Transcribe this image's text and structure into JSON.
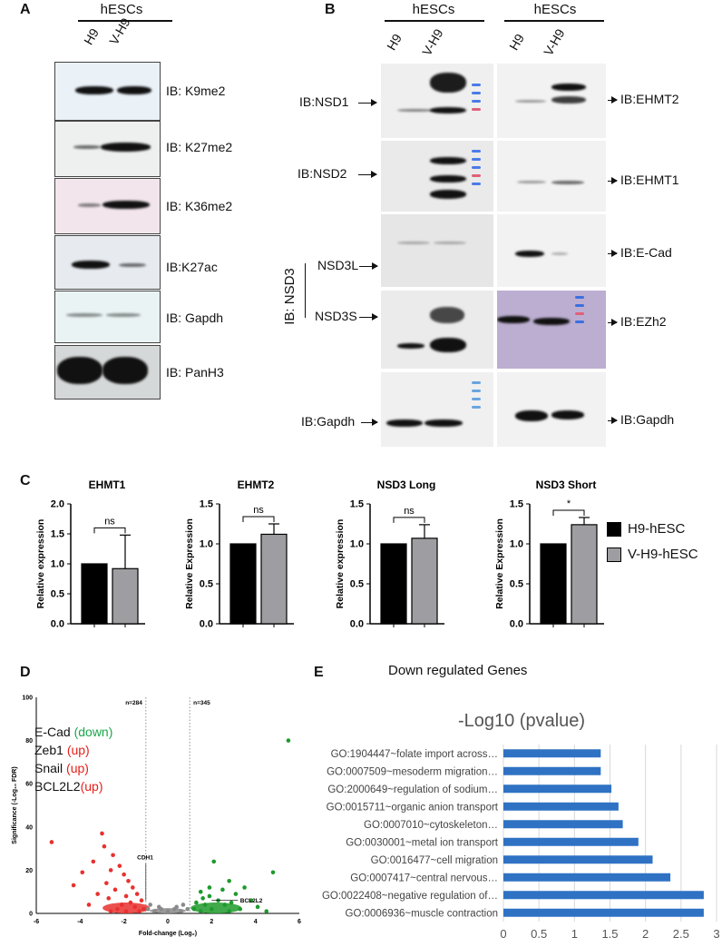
{
  "panelA": {
    "letter": "A",
    "header": "hESCs",
    "lanes": [
      "H9",
      "V-H9"
    ],
    "blots": [
      "IB: K9me2",
      "IB: K27me2",
      "IB: K36me2",
      "IB:K27ac",
      "IB: Gapdh",
      "IB: PanH3"
    ]
  },
  "panelB": {
    "letter": "B",
    "header_left": "hESCs",
    "header_right": "hESCs",
    "lanes": [
      "H9",
      "V-H9"
    ],
    "left_labels": [
      "IB:NSD1",
      "IB:NSD2",
      "NSD3L",
      "NSD3S",
      "IB:Gapdh"
    ],
    "nsd3_group": "IB: NSD3",
    "right_labels": [
      "IB:EHMT2",
      "IB:EHMT1",
      "IB:E-Cad",
      "IB:EZh2",
      "IB:Gapdh"
    ]
  },
  "panelC": {
    "letter": "C",
    "legend": [
      "H9-hESC",
      "V-H9-hESC"
    ],
    "colors": {
      "h9": "#000000",
      "vh9": "#9e9ea2"
    }
  },
  "panelD": {
    "letter": "D",
    "n_left": "n=284",
    "n_right": "n=345",
    "cdh1": "CDH1",
    "bcl2l2": "BCL2L2",
    "genes": [
      {
        "name": "E-Cad",
        "dir": "(down)"
      },
      {
        "name": "Zeb1 ",
        "dir": "(up)"
      },
      {
        "name": "Snail ",
        "dir": "(up)"
      },
      {
        "name": "BCL2L2",
        "dir": "(up)"
      }
    ],
    "colors": {
      "down": "#e8312f",
      "up": "#1e9a2c",
      "ns": "#8a8a8a",
      "text_down": "#1aa64a",
      "text_up": "#e8201a"
    }
  },
  "panelE": {
    "letter": "E",
    "title": "Down regulated Genes",
    "bar_color": "#2f72c4"
  },
  "chart_data": [
    {
      "type": "bar",
      "title": "EHMT1",
      "ylabel": "Relative expression",
      "categories": [
        "H9-hESC",
        "V-H9-hESC"
      ],
      "values": [
        1.0,
        0.92
      ],
      "error": [
        0,
        0.56
      ],
      "ylim": [
        0,
        2.0
      ],
      "yticks": [
        "0.0",
        "0.5",
        "1.0",
        "1.5",
        "2.0"
      ],
      "significance": "ns"
    },
    {
      "type": "bar",
      "title": "EHMT2",
      "ylabel": "Relative Expression",
      "categories": [
        "H9-hESC",
        "V-H9-hESC"
      ],
      "values": [
        1.0,
        1.12
      ],
      "error": [
        0,
        0.13
      ],
      "ylim": [
        0,
        1.5
      ],
      "yticks": [
        "0.0",
        "0.5",
        "1.0",
        "1.5"
      ],
      "significance": "ns"
    },
    {
      "type": "bar",
      "title": "NSD3 Long",
      "ylabel": "Relative expression",
      "categories": [
        "H9-hESC",
        "V-H9-hESC"
      ],
      "values": [
        1.0,
        1.07
      ],
      "error": [
        0,
        0.17
      ],
      "ylim": [
        0,
        1.5
      ],
      "yticks": [
        "0.0",
        "0.5",
        "1.0",
        "1.5"
      ],
      "significance": "ns"
    },
    {
      "type": "bar",
      "title": "NSD3 Short",
      "ylabel": "Relative Expression",
      "categories": [
        "H9-hESC",
        "V-H9-hESC"
      ],
      "values": [
        1.0,
        1.24
      ],
      "error": [
        0,
        0.09
      ],
      "ylim": [
        0,
        1.5
      ],
      "yticks": [
        "0.0",
        "0.5",
        "1.0",
        "1.5"
      ],
      "significance": "*"
    },
    {
      "type": "scatter",
      "title": "",
      "xlabel": "Fold-change (Log₂)",
      "ylabel": "Significance (-Log₁₀ FDR)",
      "xlim": [
        -6,
        6
      ],
      "ylim": [
        0,
        100
      ],
      "xticks": [
        "-6",
        "-4",
        "-2",
        "0",
        "2",
        "4",
        "6"
      ],
      "yticks": [
        "0",
        "20",
        "40",
        "60",
        "80",
        "100"
      ],
      "series": [
        {
          "color": "down",
          "points": [
            [
              -5.3,
              33
            ],
            [
              -4.3,
              13
            ],
            [
              -3.9,
              19
            ],
            [
              -3.4,
              24
            ],
            [
              -3.0,
              37
            ],
            [
              -2.9,
              31
            ],
            [
              -2.6,
              20
            ],
            [
              -2.5,
              27
            ],
            [
              -2.8,
              14
            ],
            [
              -2.2,
              22
            ],
            [
              -2.0,
              18
            ],
            [
              -1.8,
              15
            ],
            [
              -2.4,
              11
            ],
            [
              -1.6,
              12
            ],
            [
              -1.4,
              9
            ],
            [
              -1.9,
              8
            ],
            [
              -2.7,
              7
            ],
            [
              -3.2,
              9
            ],
            [
              -1.2,
              6
            ],
            [
              -1.7,
              5
            ],
            [
              -2.1,
              4
            ],
            [
              -1.5,
              3
            ],
            [
              -1.1,
              2
            ],
            [
              -2.3,
              2
            ],
            [
              -3.6,
              4
            ],
            [
              -1.3,
              1
            ],
            [
              -2.6,
              1
            ],
            [
              -1.9,
              1
            ]
          ]
        },
        {
          "color": "ns",
          "points": [
            [
              -0.9,
              2
            ],
            [
              -0.6,
              1
            ],
            [
              -0.3,
              2
            ],
            [
              0,
              1
            ],
            [
              0.3,
              2
            ],
            [
              0.6,
              1
            ],
            [
              0.9,
              2
            ],
            [
              -0.8,
              4
            ],
            [
              0.7,
              4
            ],
            [
              -0.4,
              3
            ],
            [
              0.4,
              3
            ]
          ]
        },
        {
          "color": "up",
          "points": [
            [
              5.5,
              80
            ],
            [
              4.8,
              19
            ],
            [
              3.5,
              12
            ],
            [
              2.8,
              15
            ],
            [
              2.1,
              24
            ],
            [
              2.5,
              11
            ],
            [
              3.1,
              9
            ],
            [
              1.5,
              10
            ],
            [
              1.9,
              8
            ],
            [
              2.3,
              6
            ],
            [
              1.3,
              5
            ],
            [
              1.7,
              4
            ],
            [
              2.6,
              4
            ],
            [
              3.8,
              6
            ],
            [
              4.1,
              3
            ],
            [
              1.2,
              2
            ],
            [
              2.0,
              2
            ],
            [
              3.3,
              2
            ],
            [
              1.5,
              1
            ],
            [
              2.8,
              1
            ],
            [
              4.5,
              1
            ],
            [
              1.9,
              12
            ],
            [
              1.6,
              7
            ],
            [
              2.9,
              5
            ]
          ]
        }
      ],
      "threshold_x": [
        -1,
        1
      ]
    },
    {
      "type": "bar",
      "title": "-Log10 (pvalue)",
      "categories": [
        "GO:1904447~folate import across…",
        "GO:0007509~mesoderm migration…",
        "GO:2000649~regulation of sodium…",
        "GO:0015711~organic anion transport",
        "GO:0007010~cytoskeleton…",
        "GO:0030001~metal ion transport",
        "GO:0016477~cell migration",
        "GO:0007417~central nervous…",
        "GO:0022408~negative regulation of…",
        "GO:0006936~muscle contraction"
      ],
      "values": [
        1.37,
        1.37,
        1.52,
        1.62,
        1.68,
        1.9,
        2.1,
        2.35,
        2.82,
        2.82
      ],
      "xlim": [
        0,
        3
      ],
      "xticks": [
        "0",
        "0.5",
        "1",
        "1.5",
        "2",
        "2.5",
        "3"
      ]
    }
  ]
}
